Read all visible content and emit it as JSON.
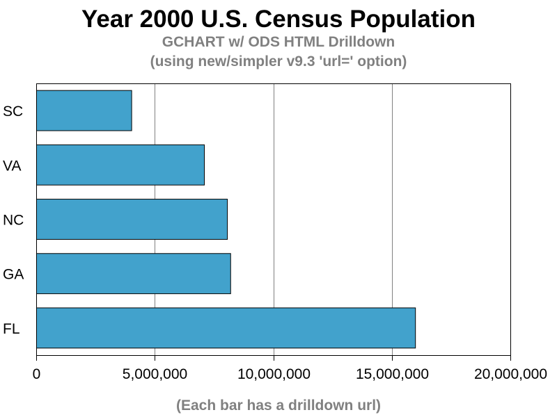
{
  "chart_data": {
    "type": "bar",
    "orientation": "horizontal",
    "title": "Year 2000 U.S. Census Population",
    "subtitle_lines": [
      "GCHART w/ ODS HTML Drilldown",
      "(using new/simpler v9.3 'url=' option)"
    ],
    "footnote": "(Each bar has a drilldown url)",
    "categories": [
      "SC",
      "VA",
      "NC",
      "GA",
      "FL"
    ],
    "values": [
      4012012,
      7078515,
      8049313,
      8186453,
      15982378
    ],
    "xlim": [
      0,
      20000000
    ],
    "x_ticks": [
      0,
      5000000,
      10000000,
      15000000,
      20000000
    ],
    "x_tick_labels": [
      "0",
      "5,000,000",
      "10,000,000",
      "15,000,000",
      "20,000,000"
    ],
    "xlabel": "",
    "ylabel": "",
    "grid": "vertical",
    "legend": "none",
    "colors": {
      "bar_fill": "#42a2cc",
      "bar_stroke": "#000000",
      "grid": "#808080",
      "frame": "#000000"
    }
  }
}
